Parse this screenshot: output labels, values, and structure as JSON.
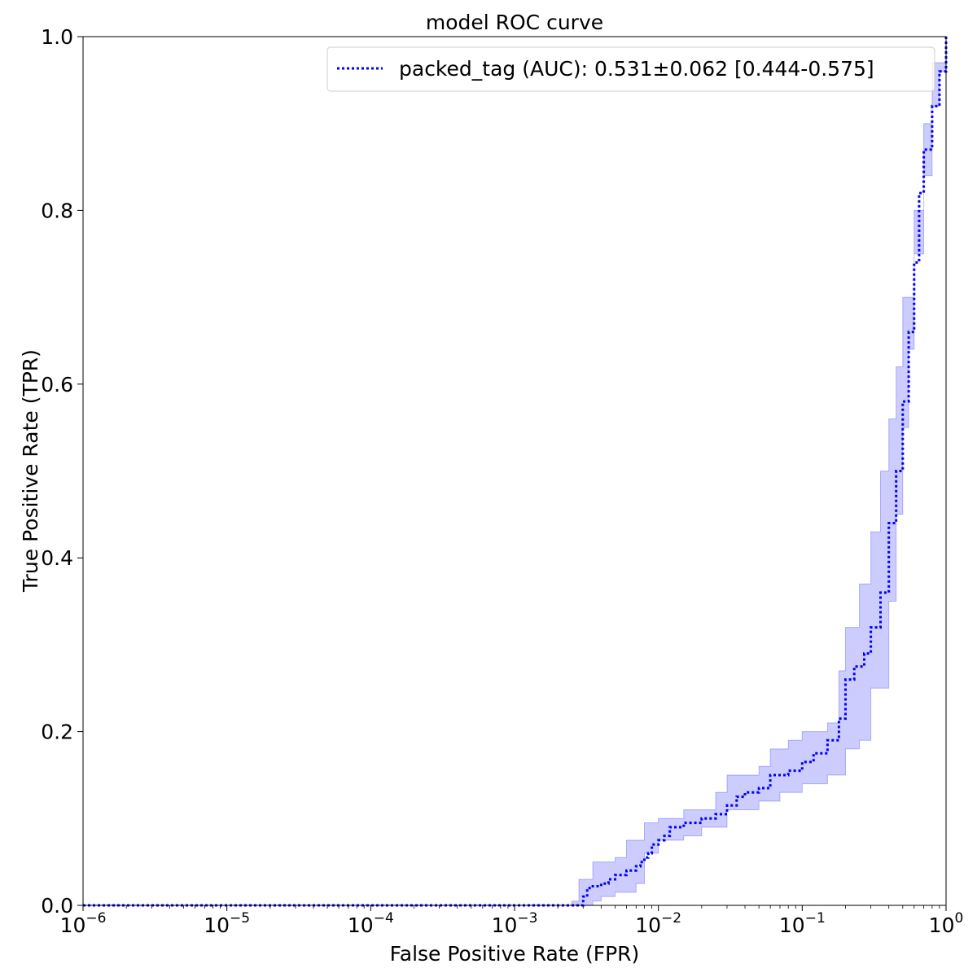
{
  "chart_data": {
    "type": "line",
    "title": "model ROC curve",
    "xlabel": "False Positive Rate (FPR)",
    "ylabel": "True Positive Rate (TPR)",
    "xscale": "log",
    "xlim": [
      1e-06,
      1
    ],
    "ylim": [
      0,
      1
    ],
    "grid": false,
    "legend_position": "upper-right",
    "x_ticks": [
      {
        "value": 1e-06,
        "base": "10",
        "exp": "−6"
      },
      {
        "value": 1e-05,
        "base": "10",
        "exp": "−5"
      },
      {
        "value": 0.0001,
        "base": "10",
        "exp": "−4"
      },
      {
        "value": 0.001,
        "base": "10",
        "exp": "−3"
      },
      {
        "value": 0.01,
        "base": "10",
        "exp": "−2"
      },
      {
        "value": 0.1,
        "base": "10",
        "exp": "−1"
      },
      {
        "value": 1,
        "base": "10",
        "exp": "0"
      }
    ],
    "y_ticks": [
      {
        "value": 0.0,
        "label": "0.0"
      },
      {
        "value": 0.2,
        "label": "0.2"
      },
      {
        "value": 0.4,
        "label": "0.4"
      },
      {
        "value": 0.6,
        "label": "0.6"
      },
      {
        "value": 0.8,
        "label": "0.8"
      },
      {
        "value": 1.0,
        "label": "1.0"
      }
    ],
    "series": [
      {
        "name": "packed_tag (AUC): 0.531±0.062 [0.444-0.575]",
        "color": "#0000ff",
        "band_color": "#0000ff",
        "line_style": "dotted",
        "points": [
          [
            1e-06,
            0.0
          ],
          [
            0.002,
            0.0
          ],
          [
            0.0028,
            0.0
          ],
          [
            0.003,
            0.01
          ],
          [
            0.0032,
            0.02
          ],
          [
            0.0035,
            0.022
          ],
          [
            0.004,
            0.025
          ],
          [
            0.0045,
            0.03
          ],
          [
            0.005,
            0.035
          ],
          [
            0.006,
            0.04
          ],
          [
            0.007,
            0.045
          ],
          [
            0.0075,
            0.05
          ],
          [
            0.008,
            0.055
          ],
          [
            0.0085,
            0.06
          ],
          [
            0.009,
            0.07
          ],
          [
            0.01,
            0.075
          ],
          [
            0.011,
            0.08
          ],
          [
            0.012,
            0.09
          ],
          [
            0.015,
            0.095
          ],
          [
            0.02,
            0.1
          ],
          [
            0.025,
            0.105
          ],
          [
            0.03,
            0.115
          ],
          [
            0.035,
            0.125
          ],
          [
            0.04,
            0.13
          ],
          [
            0.05,
            0.135
          ],
          [
            0.06,
            0.15
          ],
          [
            0.08,
            0.155
          ],
          [
            0.1,
            0.165
          ],
          [
            0.12,
            0.175
          ],
          [
            0.15,
            0.19
          ],
          [
            0.18,
            0.215
          ],
          [
            0.2,
            0.26
          ],
          [
            0.23,
            0.275
          ],
          [
            0.27,
            0.29
          ],
          [
            0.3,
            0.32
          ],
          [
            0.35,
            0.36
          ],
          [
            0.4,
            0.44
          ],
          [
            0.45,
            0.5
          ],
          [
            0.5,
            0.58
          ],
          [
            0.55,
            0.66
          ],
          [
            0.6,
            0.74
          ],
          [
            0.65,
            0.82
          ],
          [
            0.7,
            0.87
          ],
          [
            0.8,
            0.92
          ],
          [
            0.9,
            0.96
          ],
          [
            1.0,
            1.0
          ]
        ],
        "lower": [
          [
            1e-06,
            0.0
          ],
          [
            0.0035,
            0.0
          ],
          [
            0.004,
            0.005
          ],
          [
            0.005,
            0.01
          ],
          [
            0.007,
            0.015
          ],
          [
            0.008,
            0.025
          ],
          [
            0.01,
            0.06
          ],
          [
            0.015,
            0.075
          ],
          [
            0.02,
            0.08
          ],
          [
            0.03,
            0.09
          ],
          [
            0.05,
            0.11
          ],
          [
            0.07,
            0.12
          ],
          [
            0.1,
            0.13
          ],
          [
            0.15,
            0.14
          ],
          [
            0.2,
            0.15
          ],
          [
            0.25,
            0.18
          ],
          [
            0.3,
            0.19
          ],
          [
            0.4,
            0.25
          ],
          [
            0.45,
            0.35
          ],
          [
            0.5,
            0.45
          ],
          [
            0.55,
            0.55
          ],
          [
            0.6,
            0.64
          ],
          [
            0.7,
            0.75
          ],
          [
            0.8,
            0.84
          ],
          [
            0.9,
            0.92
          ],
          [
            1.0,
            0.96
          ]
        ],
        "upper": [
          [
            1e-06,
            0.0
          ],
          [
            0.002,
            0.0
          ],
          [
            0.0025,
            0.005
          ],
          [
            0.0028,
            0.03
          ],
          [
            0.0035,
            0.05
          ],
          [
            0.005,
            0.055
          ],
          [
            0.006,
            0.075
          ],
          [
            0.008,
            0.095
          ],
          [
            0.01,
            0.1
          ],
          [
            0.015,
            0.11
          ],
          [
            0.025,
            0.13
          ],
          [
            0.03,
            0.15
          ],
          [
            0.05,
            0.16
          ],
          [
            0.06,
            0.18
          ],
          [
            0.08,
            0.19
          ],
          [
            0.1,
            0.2
          ],
          [
            0.15,
            0.21
          ],
          [
            0.18,
            0.27
          ],
          [
            0.2,
            0.32
          ],
          [
            0.25,
            0.37
          ],
          [
            0.3,
            0.43
          ],
          [
            0.35,
            0.5
          ],
          [
            0.4,
            0.56
          ],
          [
            0.45,
            0.62
          ],
          [
            0.5,
            0.7
          ],
          [
            0.6,
            0.8
          ],
          [
            0.7,
            0.9
          ],
          [
            0.8,
            0.97
          ],
          [
            1.0,
            1.0
          ]
        ]
      }
    ]
  }
}
